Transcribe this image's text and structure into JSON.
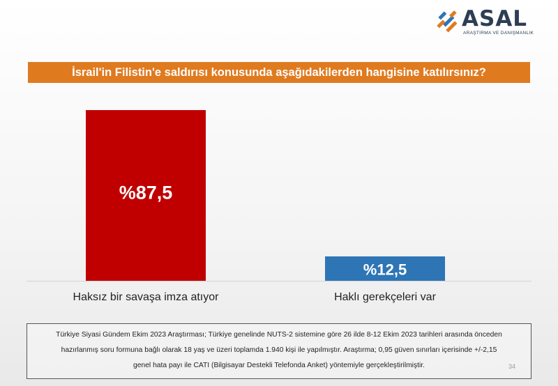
{
  "logo": {
    "name": "ASAL",
    "tagline": "ARAŞTIRMA VE DANIŞMANLIK"
  },
  "question": "İsrail'in Filistin'e saldırısı konusunda aşağıdakilerden hangisine katılırsınız?",
  "colors": {
    "accent": "#e07a1f",
    "bar_red": "#c00000",
    "bar_blue": "#2e75b6"
  },
  "chart_data": {
    "type": "bar",
    "categories": [
      "Haksız bir savaşa imza atıyor",
      "Haklı gerekçeleri var"
    ],
    "values": [
      87.5,
      12.5
    ],
    "data_labels": [
      "%87,5",
      "%12,5"
    ],
    "colors": [
      "#c00000",
      "#2e75b6"
    ],
    "title": "",
    "xlabel": "",
    "ylabel": "",
    "ylim": [
      0,
      100
    ],
    "grid": false
  },
  "footnote": {
    "lines": [
      "Türkiye Siyasi Gündem Ekim 2023 Araştırması; Türkiye genelinde NUTS-2 sistemine göre 26 ilde 8-12 Ekim 2023 tarihleri arasında önceden",
      "hazırlanmış soru formuna bağlı olarak 18 yaş ve üzeri toplamda 1.940 kişi ile yapılmıştır. Araştırma; 0,95 güven sınırları içerisinde +/-2,15",
      "genel hata payı ile CATI (Bilgisayar Destekli Telefonda Anket) yöntemiyle gerçekleştirilmiştir."
    ],
    "page_number": "34"
  }
}
